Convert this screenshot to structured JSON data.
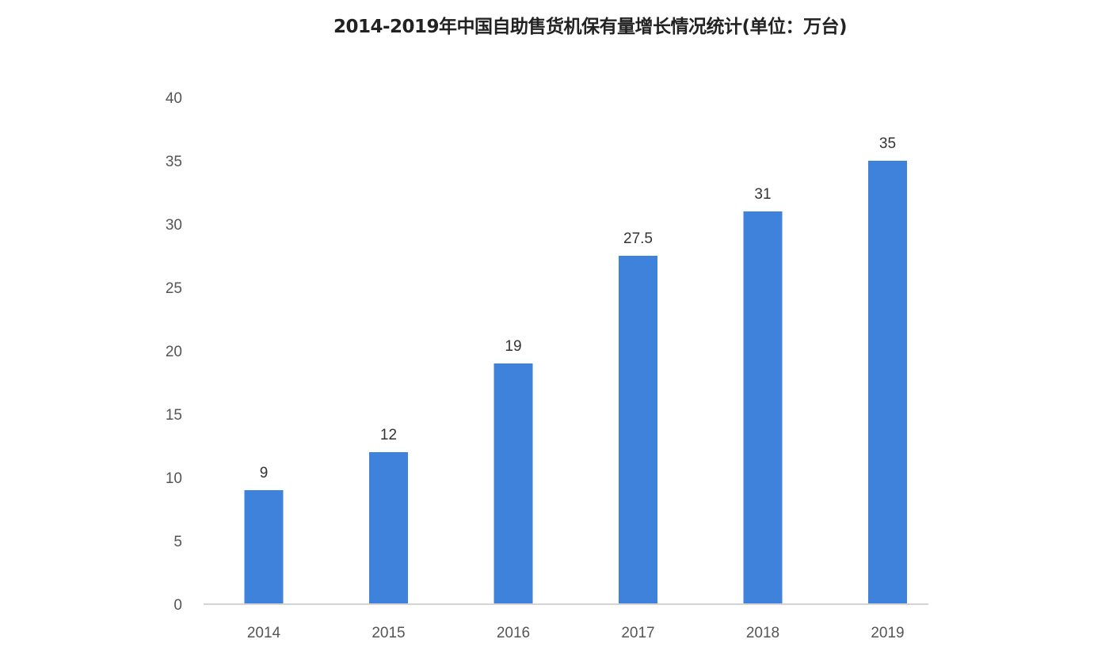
{
  "chart_data": {
    "type": "bar",
    "title": "2014-2019年中国自助售货机保有量增长情况统计(单位：万台)",
    "categories": [
      "2014",
      "2015",
      "2016",
      "2017",
      "2018",
      "2019"
    ],
    "values": [
      9,
      12,
      19,
      27.5,
      31,
      35
    ],
    "data_labels": [
      "9",
      "12",
      "19",
      "27.5",
      "31",
      "35"
    ],
    "xlabel": "",
    "ylabel": "",
    "ylim": [
      0,
      40
    ],
    "yticks": [
      0,
      5,
      10,
      15,
      20,
      25,
      30,
      35,
      40
    ],
    "grid": false,
    "legend": "none",
    "bar_color": "#3f82db"
  }
}
